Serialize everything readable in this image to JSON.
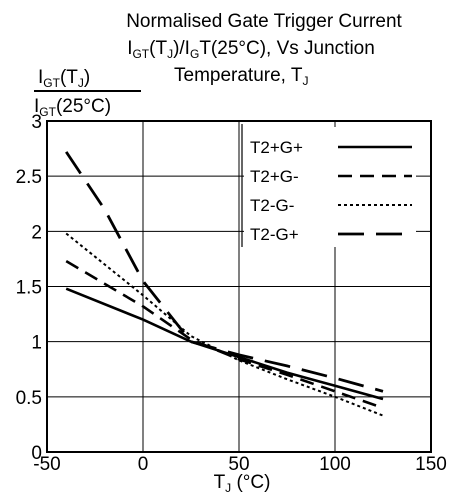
{
  "chart_data": {
    "type": "line",
    "title": "Normalised Gate Trigger Current",
    "subtitle": {
      "a": "I",
      "a_sub": "GT",
      "b": "(T",
      "b_sub": "J",
      "c": ")/I",
      "c_sub": "G",
      "d": "T(25°C), Vs Junction"
    },
    "subtitle2": {
      "a": "Temperature, T",
      "a_sub": "J"
    },
    "ylabel": {
      "num_a": "I",
      "num_sub1": "GT",
      "num_b": "(T",
      "num_sub2": "J",
      "num_c": ")",
      "den_a": "I",
      "den_sub": "GT",
      "den_b": "(25°C)"
    },
    "xlabel": {
      "a": "T",
      "a_sub": "J",
      "b": " (°C)"
    },
    "xlim": [
      -50,
      150
    ],
    "ylim": [
      0,
      3
    ],
    "xticks": [
      "-50",
      "0",
      "50",
      "100",
      "150"
    ],
    "yticks": [
      "0",
      "0.5",
      "1",
      "1.5",
      "2",
      "2.5",
      "3"
    ],
    "xtick_values": [
      -50,
      0,
      50,
      100,
      150
    ],
    "ytick_values": [
      0,
      0.5,
      1,
      1.5,
      2,
      2.5,
      3
    ],
    "grid": true,
    "legend_position": "top-right",
    "series": [
      {
        "name": "T2+G+",
        "style": "solid",
        "x": [
          -40,
          0,
          25,
          50,
          75,
          100,
          125
        ],
        "y": [
          1.48,
          1.2,
          1.0,
          0.86,
          0.72,
          0.6,
          0.48
        ]
      },
      {
        "name": "T2+G-",
        "style": "dashed",
        "x": [
          -40,
          0,
          25,
          50,
          75,
          100,
          125
        ],
        "y": [
          1.73,
          1.32,
          1.02,
          0.84,
          0.7,
          0.55,
          0.4
        ]
      },
      {
        "name": "T2-G-",
        "style": "dotted",
        "x": [
          -40,
          -20,
          0,
          25,
          50,
          75,
          100,
          125
        ],
        "y": [
          1.98,
          1.7,
          1.42,
          1.05,
          0.83,
          0.66,
          0.5,
          0.33
        ]
      },
      {
        "name": "T2-G+",
        "style": "longdash",
        "x": [
          -40,
          -20,
          0,
          25,
          50,
          75,
          100,
          125
        ],
        "y": [
          2.72,
          2.2,
          1.55,
          1.0,
          0.88,
          0.78,
          0.67,
          0.55
        ]
      }
    ]
  }
}
